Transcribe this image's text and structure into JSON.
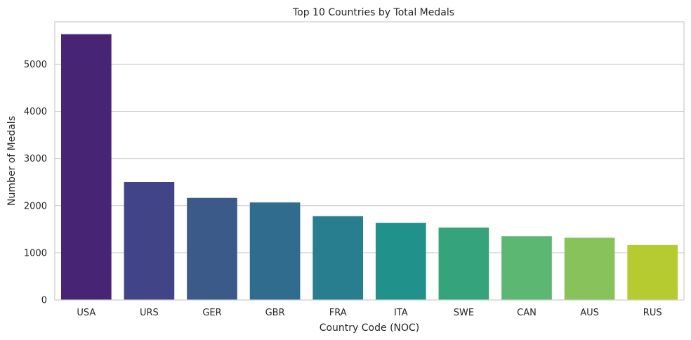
{
  "chart_data": {
    "type": "bar",
    "title": "Top 10 Countries by Total Medals",
    "xlabel": "Country Code (NOC)",
    "ylabel": "Number of Medals",
    "categories": [
      "USA",
      "URS",
      "GER",
      "GBR",
      "FRA",
      "ITA",
      "SWE",
      "CAN",
      "AUS",
      "RUS"
    ],
    "values": [
      5637,
      2503,
      2165,
      2068,
      1777,
      1637,
      1536,
      1352,
      1320,
      1165
    ],
    "ylim": [
      0,
      5900
    ],
    "yticks": [
      0,
      1000,
      2000,
      3000,
      4000,
      5000
    ],
    "colors": [
      "#482475",
      "#414487",
      "#3b5a8a",
      "#2f6c8e",
      "#287d8e",
      "#21918c",
      "#35a47c",
      "#5cb773",
      "#87c35a",
      "#b5cb2f"
    ],
    "grid": true,
    "legend": "none"
  }
}
